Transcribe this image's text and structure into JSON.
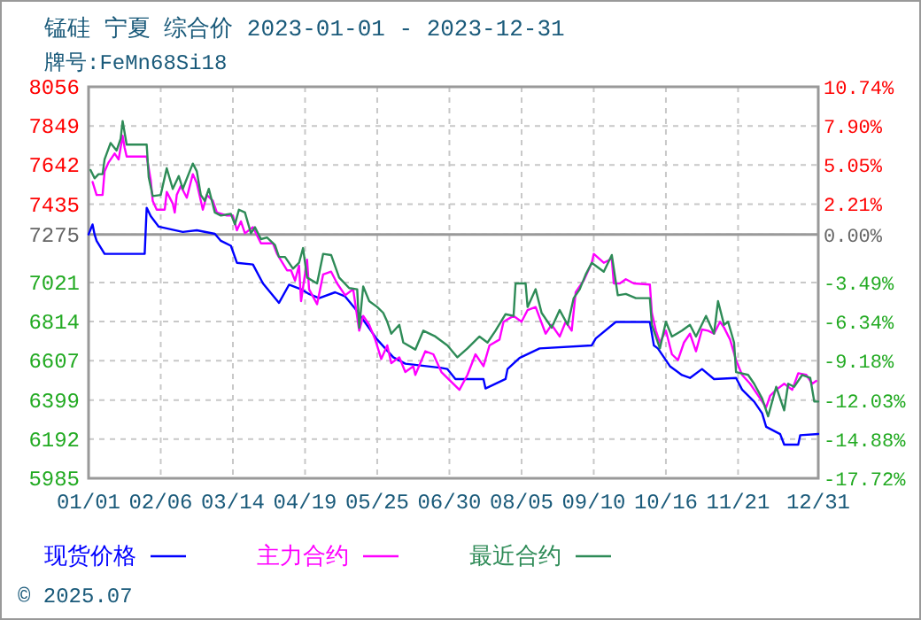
{
  "chart_data": {
    "type": "line",
    "title": "锰硅  宁夏  综合价  2023-01-01 - 2023-12-31",
    "subtitle": "牌号:FeMn68Si18",
    "annotations": [
      "© 2025.07"
    ],
    "xlim": [
      "2023-01-01",
      "2023-12-31"
    ],
    "xticks": [
      {
        "value": "2023-01-01",
        "label": "01/01"
      },
      {
        "value": "2023-02-06",
        "label": "02/06"
      },
      {
        "value": "2023-03-14",
        "label": "03/14"
      },
      {
        "value": "2023-04-19",
        "label": "04/19"
      },
      {
        "value": "2023-05-25",
        "label": "05/25"
      },
      {
        "value": "2023-06-30",
        "label": "06/30"
      },
      {
        "value": "2023-08-05",
        "label": "08/05"
      },
      {
        "value": "2023-09-10",
        "label": "09/10"
      },
      {
        "value": "2023-10-16",
        "label": "10/16"
      },
      {
        "value": "2023-11-21",
        "label": "11/21"
      },
      {
        "value": "2023-12-31",
        "label": "12/31"
      }
    ],
    "ylim": [
      5985,
      8056
    ],
    "yticks": [
      8056,
      7849,
      7642,
      7435,
      7275,
      7021,
      6814,
      6607,
      6399,
      6192,
      5985
    ],
    "y2lim": [
      -17.72,
      10.74
    ],
    "y2ticks": [
      {
        "value": 10.74,
        "label": "10.74%"
      },
      {
        "value": 7.9,
        "label": "7.90%"
      },
      {
        "value": 5.05,
        "label": "5.05%"
      },
      {
        "value": 2.21,
        "label": "2.21%"
      },
      {
        "value": 0.0,
        "label": "0.00%"
      },
      {
        "value": -3.49,
        "label": "-3.49%"
      },
      {
        "value": -6.34,
        "label": "-6.34%"
      },
      {
        "value": -9.18,
        "label": "-9.18%"
      },
      {
        "value": -12.03,
        "label": "-12.03%"
      },
      {
        "value": -14.88,
        "label": "-14.88%"
      },
      {
        "value": -17.72,
        "label": "-17.72%"
      }
    ],
    "ref_lines": [
      {
        "axis": "y",
        "value": 7275,
        "color": "#999999"
      }
    ],
    "grid": true,
    "legend": "bottom",
    "line_style": "solid",
    "series": [
      {
        "name": "现货价格",
        "color": "#0000ff",
        "x": [
          "2023-01-01",
          "2023-01-03",
          "2023-01-04",
          "2023-01-05",
          "2023-01-09",
          "2023-01-29",
          "2023-01-30",
          "2023-02-01",
          "2023-02-05",
          "2023-02-17",
          "2023-02-24",
          "2023-03-05",
          "2023-03-08",
          "2023-03-13",
          "2023-03-16",
          "2023-03-24",
          "2023-03-29",
          "2023-04-06",
          "2023-04-11",
          "2023-04-17",
          "2023-04-21",
          "2023-04-26",
          "2023-05-04",
          "2023-05-09",
          "2023-05-14",
          "2023-05-25",
          "2023-06-02",
          "2023-06-08",
          "2023-06-26",
          "2023-06-29",
          "2023-07-03",
          "2023-07-17",
          "2023-07-18",
          "2023-07-28",
          "2023-07-29",
          "2023-08-04",
          "2023-08-14",
          "2023-09-09",
          "2023-09-11",
          "2023-09-21",
          "2023-10-08",
          "2023-10-10",
          "2023-10-12",
          "2023-10-18",
          "2023-10-24",
          "2023-10-28",
          "2023-11-03",
          "2023-11-09",
          "2023-11-20",
          "2023-11-23",
          "2023-11-29",
          "2023-12-03",
          "2023-12-05",
          "2023-12-12",
          "2023-12-14",
          "2023-12-21",
          "2023-12-22",
          "2023-12-31"
        ],
        "values": [
          7275,
          7328,
          7275,
          7241,
          7172,
          7172,
          7416,
          7372,
          7316,
          7288,
          7297,
          7278,
          7241,
          7215,
          7125,
          7116,
          7016,
          6913,
          7009,
          6985,
          6960,
          6938,
          6969,
          6947,
          6882,
          6719,
          6625,
          6591,
          6569,
          6563,
          6510,
          6510,
          6460,
          6510,
          6563,
          6622,
          6672,
          6688,
          6725,
          6812,
          6812,
          6688,
          6672,
          6578,
          6531,
          6516,
          6563,
          6510,
          6516,
          6454,
          6391,
          6329,
          6257,
          6219,
          6163,
          6163,
          6213,
          6219
        ]
      },
      {
        "name": "主力合约",
        "color": "#ff00ff",
        "x": [
          "2023-01-03",
          "2023-01-05",
          "2023-01-08",
          "2023-01-09",
          "2023-01-11",
          "2023-01-14",
          "2023-01-16",
          "2023-01-18",
          "2023-01-19",
          "2023-01-20",
          "2023-01-30",
          "2023-02-01",
          "2023-02-02",
          "2023-02-04",
          "2023-02-08",
          "2023-02-09",
          "2023-02-12",
          "2023-02-13",
          "2023-02-14",
          "2023-02-16",
          "2023-02-19",
          "2023-02-22",
          "2023-02-24",
          "2023-02-27",
          "2023-03-01",
          "2023-03-04",
          "2023-03-06",
          "2023-03-11",
          "2023-03-14",
          "2023-03-16",
          "2023-03-18",
          "2023-03-20",
          "2023-03-24",
          "2023-03-28",
          "2023-04-03",
          "2023-04-05",
          "2023-04-10",
          "2023-04-12",
          "2023-04-14",
          "2023-04-16",
          "2023-04-17",
          "2023-04-20",
          "2023-04-21",
          "2023-04-25",
          "2023-04-28",
          "2023-05-02",
          "2023-05-05",
          "2023-05-09",
          "2023-05-13",
          "2023-05-16",
          "2023-05-18",
          "2023-05-21",
          "2023-05-24",
          "2023-05-27",
          "2023-05-30",
          "2023-06-01",
          "2023-06-05",
          "2023-06-08",
          "2023-06-12",
          "2023-06-13",
          "2023-06-18",
          "2023-06-22",
          "2023-06-26",
          "2023-07-05",
          "2023-07-09",
          "2023-07-13",
          "2023-07-17",
          "2023-07-20",
          "2023-07-25",
          "2023-07-27",
          "2023-08-01",
          "2023-08-05",
          "2023-08-08",
          "2023-08-12",
          "2023-08-17",
          "2023-08-20",
          "2023-08-24",
          "2023-08-27",
          "2023-08-30",
          "2023-09-01",
          "2023-09-05",
          "2023-09-09",
          "2023-09-10",
          "2023-09-15",
          "2023-09-19",
          "2023-09-20",
          "2023-09-23",
          "2023-09-26",
          "2023-09-30",
          "2023-10-08",
          "2023-10-09",
          "2023-10-11",
          "2023-10-13",
          "2023-10-16",
          "2023-10-19",
          "2023-10-22",
          "2023-10-25",
          "2023-10-28",
          "2023-10-31",
          "2023-11-03",
          "2023-11-06",
          "2023-11-09",
          "2023-11-12",
          "2023-11-14",
          "2023-11-17",
          "2023-11-20",
          "2023-11-23",
          "2023-11-27",
          "2023-12-02",
          "2023-12-05",
          "2023-12-07",
          "2023-12-10",
          "2023-12-14",
          "2023-12-18",
          "2023-12-21",
          "2023-12-25",
          "2023-12-28",
          "2023-12-30"
        ],
        "values": [
          7553,
          7484,
          7484,
          7609,
          7656,
          7703,
          7672,
          7797,
          7734,
          7687,
          7687,
          7563,
          7453,
          7406,
          7406,
          7500,
          7438,
          7391,
          7484,
          7531,
          7469,
          7594,
          7547,
          7406,
          7484,
          7453,
          7391,
          7375,
          7375,
          7297,
          7344,
          7281,
          7313,
          7228,
          7228,
          7172,
          7085,
          7085,
          7031,
          7110,
          6922,
          7141,
          6985,
          6906,
          7063,
          7078,
          7016,
          6953,
          6985,
          6766,
          6844,
          6797,
          6719,
          6616,
          6688,
          6594,
          6625,
          6547,
          6578,
          6532,
          6657,
          6641,
          6547,
          6453,
          6532,
          6641,
          6578,
          6688,
          6719,
          6813,
          6844,
          6813,
          6875,
          6891,
          6750,
          6797,
          6735,
          6813,
          6766,
          6969,
          7031,
          7125,
          7172,
          7125,
          7147,
          7016,
          7016,
          7038,
          7016,
          7010,
          6860,
          6766,
          6703,
          6766,
          6641,
          6610,
          6703,
          6750,
          6657,
          6772,
          6766,
          6750,
          6813,
          6782,
          6719,
          6610,
          6532,
          6485,
          6407,
          6360,
          6422,
          6453,
          6485,
          6453,
          6541,
          6532,
          6485,
          6500
        ]
      },
      {
        "name": "最近合约",
        "color": "#2e8b57",
        "x": [
          "2023-01-02",
          "2023-01-04",
          "2023-01-06",
          "2023-01-08",
          "2023-01-09",
          "2023-01-12",
          "2023-01-15",
          "2023-01-17",
          "2023-01-18",
          "2023-01-20",
          "2023-01-30",
          "2023-01-31",
          "2023-02-02",
          "2023-02-06",
          "2023-02-09",
          "2023-02-12",
          "2023-02-15",
          "2023-02-17",
          "2023-02-22",
          "2023-02-24",
          "2023-02-26",
          "2023-02-28",
          "2023-03-02",
          "2023-03-05",
          "2023-03-08",
          "2023-03-13",
          "2023-03-15",
          "2023-03-17",
          "2023-03-20",
          "2023-03-23",
          "2023-03-25",
          "2023-03-28",
          "2023-03-31",
          "2023-04-04",
          "2023-04-06",
          "2023-04-09",
          "2023-04-13",
          "2023-04-16",
          "2023-04-18",
          "2023-04-20",
          "2023-04-25",
          "2023-04-28",
          "2023-05-02",
          "2023-05-06",
          "2023-05-11",
          "2023-05-15",
          "2023-05-16",
          "2023-05-18",
          "2023-05-21",
          "2023-05-25",
          "2023-05-28",
          "2023-05-30",
          "2023-06-01",
          "2023-06-05",
          "2023-06-07",
          "2023-06-13",
          "2023-06-17",
          "2023-06-23",
          "2023-06-29",
          "2023-07-04",
          "2023-07-09",
          "2023-07-15",
          "2023-07-19",
          "2023-07-23",
          "2023-07-28",
          "2023-08-01",
          "2023-08-02",
          "2023-08-07",
          "2023-08-08",
          "2023-08-12",
          "2023-08-15",
          "2023-08-20",
          "2023-08-24",
          "2023-08-28",
          "2023-08-31",
          "2023-09-03",
          "2023-09-06",
          "2023-09-09",
          "2023-09-15",
          "2023-09-19",
          "2023-09-22",
          "2023-09-26",
          "2023-10-01",
          "2023-10-08",
          "2023-10-09",
          "2023-10-13",
          "2023-10-16",
          "2023-10-19",
          "2023-10-24",
          "2023-10-28",
          "2023-10-31",
          "2023-11-05",
          "2023-11-09",
          "2023-11-11",
          "2023-11-14",
          "2023-11-16",
          "2023-11-19",
          "2023-11-20",
          "2023-11-26",
          "2023-11-29",
          "2023-12-03",
          "2023-12-06",
          "2023-12-10",
          "2023-12-14",
          "2023-12-16",
          "2023-12-19",
          "2023-12-23",
          "2023-12-27",
          "2023-12-29",
          "2023-12-31"
        ],
        "values": [
          7616,
          7572,
          7594,
          7594,
          7672,
          7759,
          7719,
          7781,
          7875,
          7750,
          7750,
          7578,
          7478,
          7484,
          7625,
          7516,
          7584,
          7516,
          7650,
          7609,
          7484,
          7453,
          7516,
          7391,
          7375,
          7384,
          7328,
          7406,
          7391,
          7281,
          7313,
          7250,
          7259,
          7219,
          7156,
          7156,
          7094,
          7125,
          7203,
          7047,
          7016,
          7172,
          7166,
          7047,
          6991,
          6985,
          6781,
          7000,
          6922,
          6891,
          6860,
          6813,
          6750,
          6797,
          6703,
          6666,
          6766,
          6735,
          6688,
          6625,
          6672,
          6735,
          6703,
          6766,
          6853,
          6844,
          7016,
          7016,
          6891,
          6985,
          6860,
          6782,
          6875,
          6797,
          6938,
          6985,
          7063,
          7125,
          7078,
          7166,
          6953,
          6960,
          6938,
          6938,
          6797,
          6672,
          6813,
          6735,
          6766,
          6797,
          6735,
          6844,
          6750,
          6922,
          6797,
          6813,
          6703,
          6547,
          6532,
          6485,
          6407,
          6313,
          6469,
          6344,
          6485,
          6469,
          6532,
          6516,
          6391,
          6391
        ]
      }
    ]
  }
}
